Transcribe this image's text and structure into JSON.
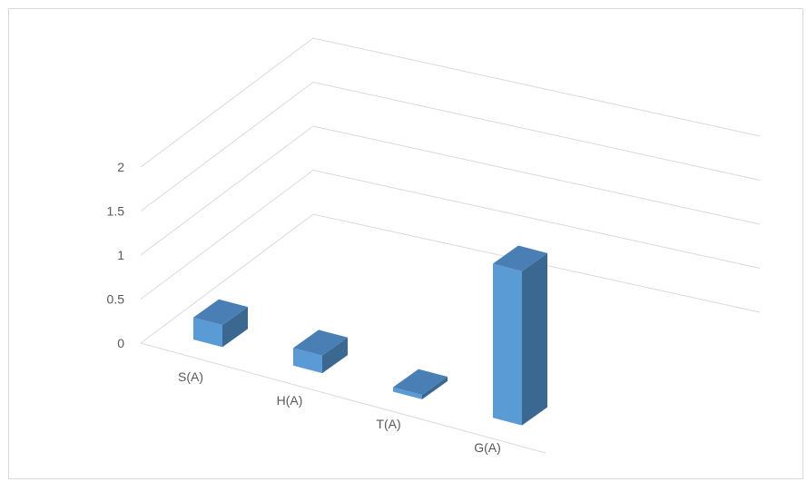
{
  "chart_data": {
    "type": "bar",
    "title": "",
    "xlabel": "",
    "ylabel": "",
    "categories": [
      "S(A)",
      "H(A)",
      "T(A)",
      "G(A)"
    ],
    "values": [
      0.25,
      0.2,
      0.05,
      1.75
    ],
    "ylim": [
      0,
      2
    ],
    "yticks": [
      "0",
      "0.5",
      "1",
      "1.5",
      "2"
    ],
    "grid": true,
    "legend": "none"
  },
  "colors": {
    "bar_front": "#5b9bd5",
    "bar_top": "#4a7fb5",
    "bar_side": "#3a6891",
    "grid": "#d9d9d9",
    "text": "#595959"
  }
}
